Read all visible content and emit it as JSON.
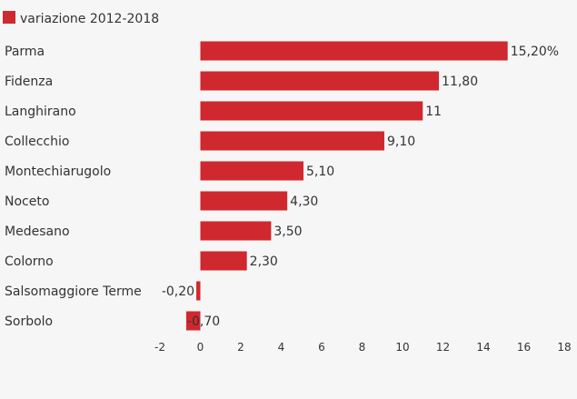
{
  "chart_data": {
    "type": "bar",
    "orientation": "horizontal",
    "title": "",
    "xlabel": "",
    "ylabel": "",
    "series": [
      {
        "name": "variazione 2012-2018",
        "color": "#d0282f",
        "values": [
          15.2,
          11.8,
          11,
          9.1,
          5.1,
          4.3,
          3.5,
          2.3,
          -0.2,
          -0.7
        ]
      }
    ],
    "categories": [
      "Parma",
      "Fidenza",
      "Langhirano",
      "Collecchio",
      "Montechiarugolo",
      "Noceto",
      "Medesano",
      "Colorno",
      "Salsomaggiore Terme",
      "Sorbolo"
    ],
    "value_labels": [
      "15,20%",
      "11,80",
      "11",
      "9,10",
      "5,10",
      "4,30",
      "3,50",
      "2,30",
      "-0,20",
      "-0,70"
    ],
    "xlim": [
      -2,
      18
    ],
    "x_ticks": [
      -2,
      0,
      2,
      4,
      6,
      8,
      10,
      12,
      14,
      16,
      18
    ],
    "x_tick_labels": [
      "-2",
      "0",
      "2",
      "4",
      "6",
      "8",
      "10",
      "12",
      "14",
      "16",
      "18"
    ],
    "grid": false,
    "legend_position": "top-left"
  }
}
